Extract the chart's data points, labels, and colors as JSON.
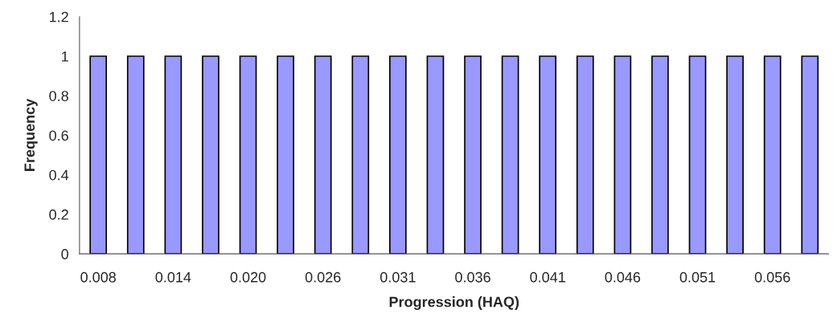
{
  "chart_data": {
    "type": "bar",
    "xlabel": "Progression (HAQ)",
    "ylabel": "Frequency",
    "categories": [
      "0.008",
      null,
      "0.014",
      null,
      "0.020",
      null,
      "0.026",
      null,
      "0.031",
      null,
      "0.036",
      null,
      "0.041",
      null,
      "0.046",
      null,
      "0.051",
      null,
      "0.056",
      null
    ],
    "values": [
      1,
      1,
      1,
      1,
      1,
      1,
      1,
      1,
      1,
      1,
      1,
      1,
      1,
      1,
      1,
      1,
      1,
      1,
      1,
      1
    ],
    "color": "#9999ff",
    "ylim": [
      0,
      1.2
    ],
    "yticks": [
      0,
      0.2,
      0.4,
      0.6,
      0.8,
      1,
      1.2
    ],
    "grid": false
  }
}
